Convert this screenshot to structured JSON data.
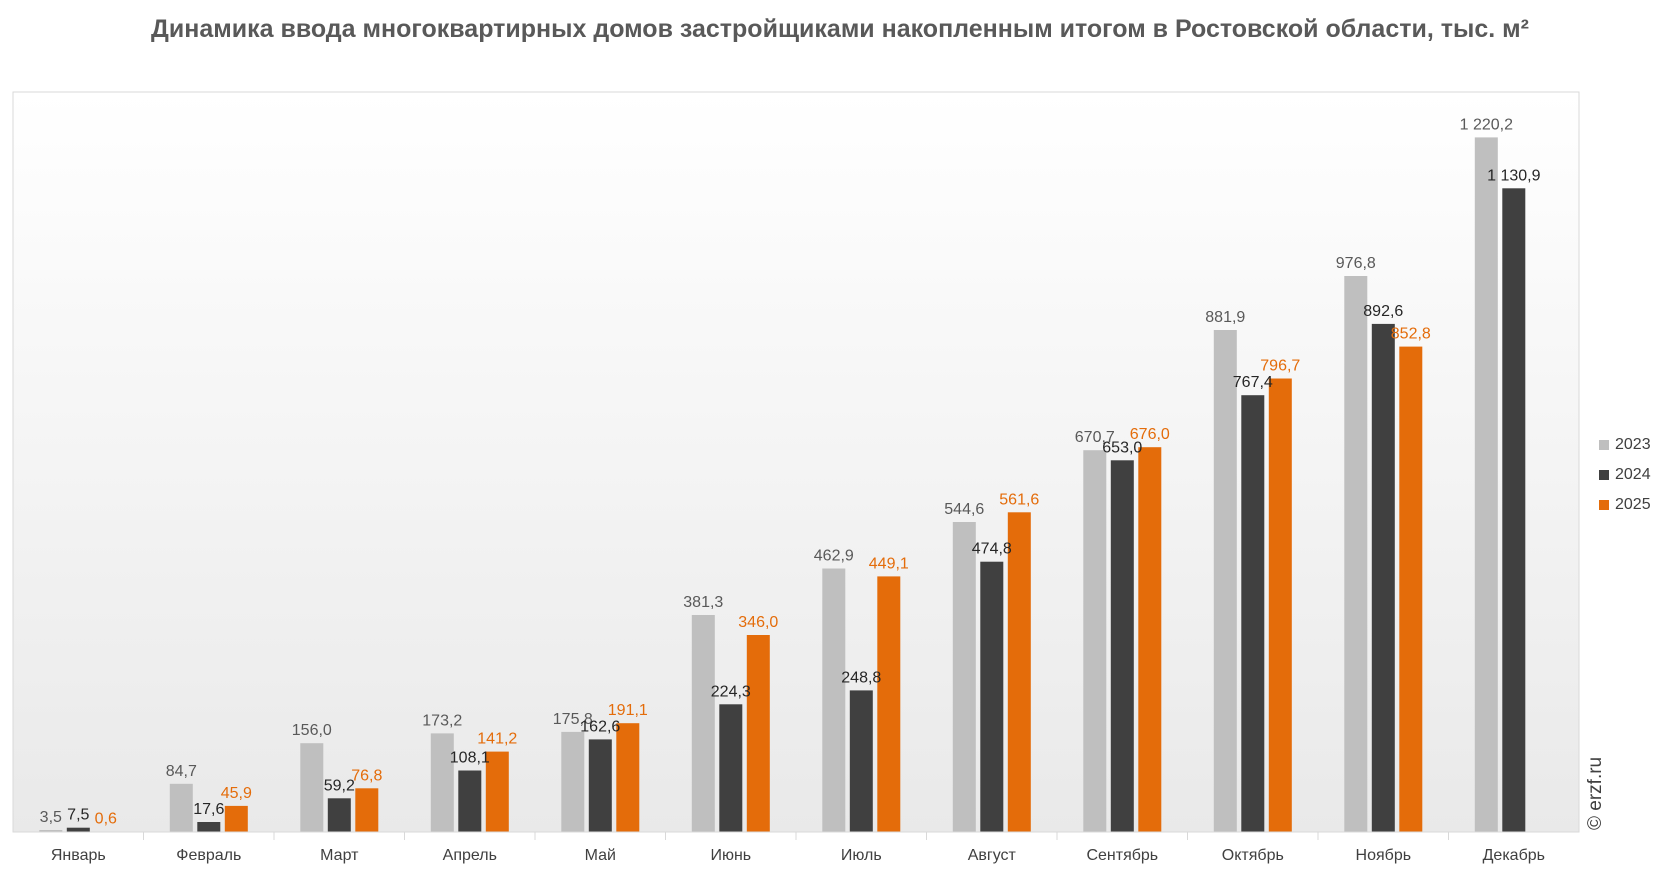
{
  "chart_data": {
    "type": "bar",
    "title": "Динамика ввода многоквартирных домов застройщиками накопленным итогом в Ростовской области, тыс. м²",
    "categories": [
      "Январь",
      "Февраль",
      "Март",
      "Апрель",
      "Май",
      "Июнь",
      "Июль",
      "Август",
      "Сентябрь",
      "Октябрь",
      "Ноябрь",
      "Декабрь"
    ],
    "series": [
      {
        "name": "2023",
        "color": "#bfbfbf",
        "label_color": "#595959",
        "values": [
          3.5,
          84.7,
          156.0,
          173.2,
          175.8,
          381.3,
          462.9,
          544.6,
          670.7,
          881.9,
          976.8,
          1220.2
        ],
        "labels": [
          "3,5",
          "84,7",
          "156,0",
          "173,2",
          "175,8",
          "381,3",
          "462,9",
          "544,6",
          "670,7",
          "881,9",
          "976,8",
          "1 220,2"
        ]
      },
      {
        "name": "2024",
        "color": "#404040",
        "label_color": "#262626",
        "values": [
          7.5,
          17.6,
          59.2,
          108.1,
          162.6,
          224.3,
          248.8,
          474.8,
          653.0,
          767.4,
          892.6,
          1130.9
        ],
        "labels": [
          "7,5",
          "17,6",
          "59,2",
          "108,1",
          "162,6",
          "224,3",
          "248,8",
          "474,8",
          "653,0",
          "767,4",
          "892,6",
          "1 130,9"
        ]
      },
      {
        "name": "2025",
        "color": "#e46c0a",
        "label_color": "#e46c0a",
        "values": [
          0.6,
          45.9,
          76.8,
          141.2,
          191.1,
          346.0,
          449.1,
          561.6,
          676.0,
          796.7,
          852.8,
          null
        ],
        "labels": [
          "0,6",
          "45,9",
          "76,8",
          "141,2",
          "191,1",
          "346,0",
          "449,1",
          "561,6",
          "676,0",
          "796,7",
          "852,8",
          null
        ]
      }
    ],
    "ylim": [
      0,
      1300
    ],
    "grid": false,
    "legend_position": "right"
  },
  "watermark": "© erzf.ru"
}
